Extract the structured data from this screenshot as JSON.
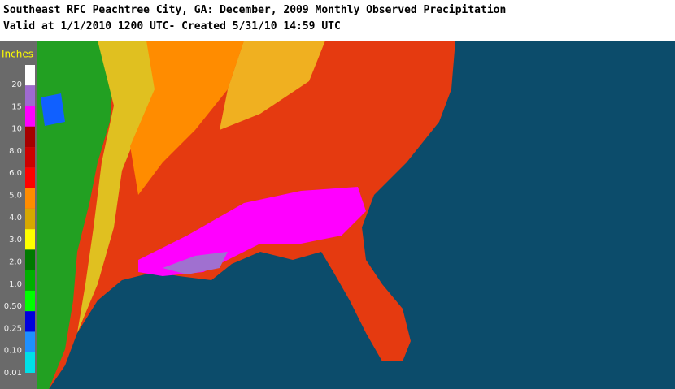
{
  "header": {
    "title": "Southeast RFC Peachtree City, GA: December, 2009 Monthly Observed Precipitation",
    "subtitle": "Valid at 1/1/2010 1200 UTC- Created 5/31/10 14:59 UTC"
  },
  "legend": {
    "unit": "Inches",
    "labels": [
      "20",
      "15",
      "10",
      "8.0",
      "6.0",
      "5.0",
      "4.0",
      "3.0",
      "2.0",
      "1.0",
      "0.50",
      "0.25",
      "0.10",
      "0.01"
    ],
    "colors": [
      "#ffffff",
      "#9f6ad0",
      "#ff00ff",
      "#a50000",
      "#cc0000",
      "#ff0000",
      "#ff8c00",
      "#d6a800",
      "#ffff00",
      "#007a00",
      "#00b000",
      "#00ff00",
      "#0000dd",
      "#1e90ff",
      "#00e0e8"
    ]
  }
}
